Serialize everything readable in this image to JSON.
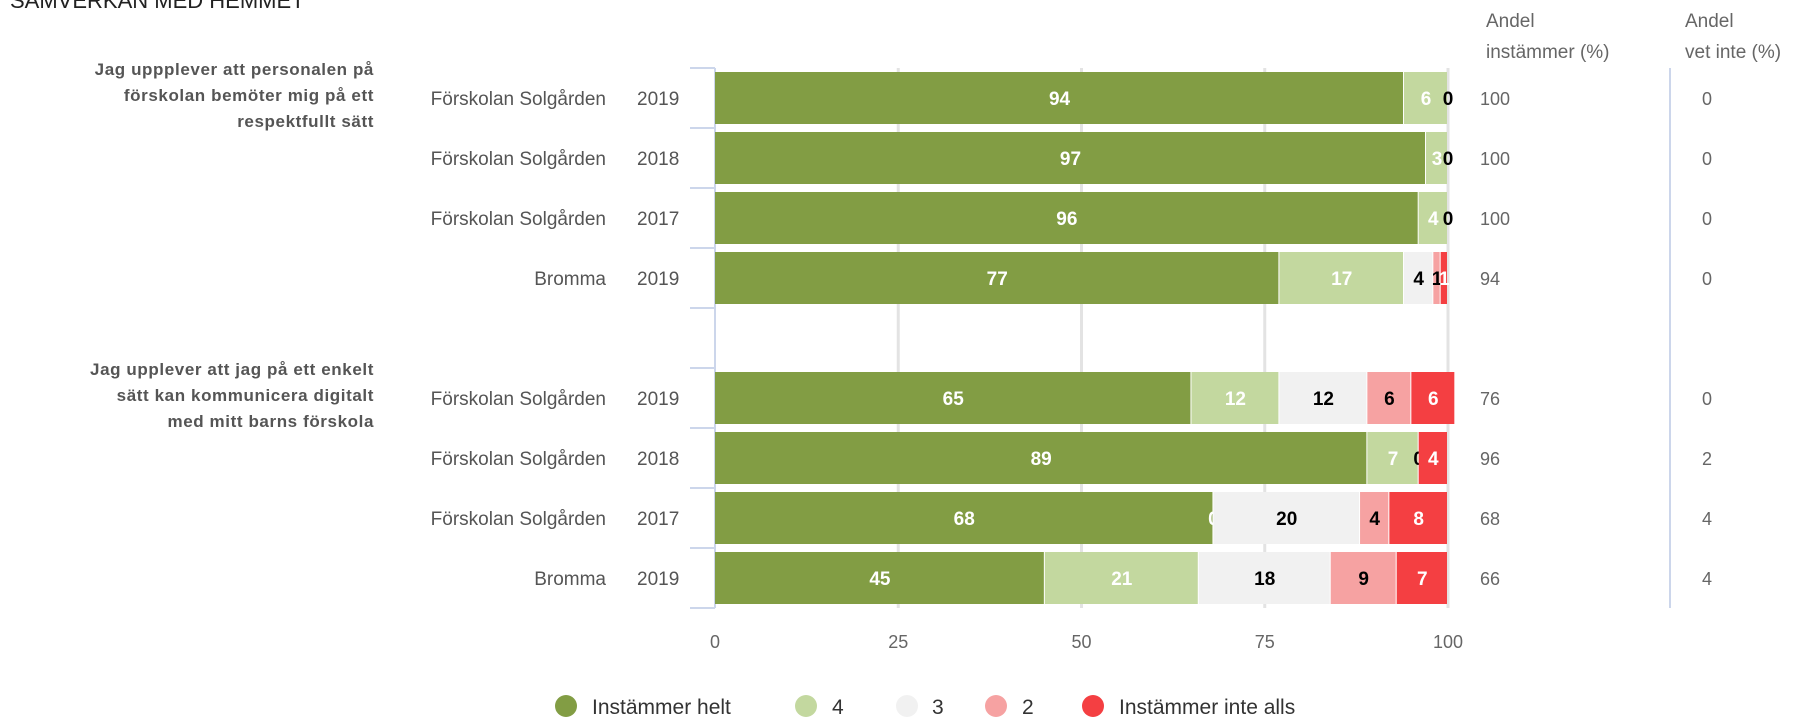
{
  "page_title": "SAMVERKAN MED HEMMET",
  "colors": {
    "full": "#829d44",
    "four": "#c3d89f",
    "three": "#f1f1f1",
    "two": "#f6a2a2",
    "none": "#f43f42"
  },
  "columns": {
    "agree_line1": "Andel",
    "agree_line2": "instämmer (%)",
    "dontknow_line1": "Andel",
    "dontknow_line2": "vet inte (%)"
  },
  "chart_data": {
    "type": "bar",
    "orientation": "horizontal",
    "stacked": true,
    "xlim": [
      0,
      100
    ],
    "xticks": [
      0,
      25,
      50,
      75,
      100
    ],
    "grid": true,
    "legend_placement": "bottom",
    "series": [
      {
        "name": "Instämmer helt",
        "color": "#829d44"
      },
      {
        "name": "4",
        "color": "#c3d89f"
      },
      {
        "name": "3",
        "color": "#f1f1f1"
      },
      {
        "name": "2",
        "color": "#f6a2a2"
      },
      {
        "name": "Instämmer inte alls",
        "color": "#f43f42"
      }
    ],
    "groups": [
      {
        "question_lines": [
          "Jag uppplever att personalen på",
          "förskolan bemöter mig på ett",
          "respektfullt sätt"
        ],
        "rows": [
          {
            "category": "Förskolan Solgården",
            "year": "2019",
            "values": [
              94,
              6,
              0,
              0,
              0
            ],
            "labels": [
              "94",
              "6",
              "0",
              "",
              ""
            ],
            "agree": "100",
            "dont_know": "0"
          },
          {
            "category": "Förskolan Solgården",
            "year": "2018",
            "values": [
              97,
              3,
              0,
              0,
              0
            ],
            "labels": [
              "97",
              "3",
              "0",
              "",
              ""
            ],
            "agree": "100",
            "dont_know": "0"
          },
          {
            "category": "Förskolan Solgården",
            "year": "2017",
            "values": [
              96,
              4,
              0,
              0,
              0
            ],
            "labels": [
              "96",
              "4",
              "0",
              "",
              ""
            ],
            "agree": "100",
            "dont_know": "0"
          },
          {
            "category": "Bromma",
            "year": "2019",
            "values": [
              77,
              17,
              4,
              1,
              1
            ],
            "labels": [
              "77",
              "17",
              "4",
              "1",
              "1"
            ],
            "agree": "94",
            "dont_know": "0"
          }
        ]
      },
      {
        "question_lines": [
          "Jag upplever att jag på ett enkelt",
          "sätt kan kommunicera digitalt",
          "med mitt barns förskola"
        ],
        "rows": [
          {
            "category": "Förskolan Solgården",
            "year": "2019",
            "values": [
              65,
              12,
              12,
              6,
              6
            ],
            "labels": [
              "65",
              "12",
              "12",
              "6",
              "6"
            ],
            "agree": "76",
            "dont_know": "0"
          },
          {
            "category": "Förskolan Solgården",
            "year": "2018",
            "values": [
              89,
              7,
              0,
              0,
              4
            ],
            "labels": [
              "89",
              "7",
              "0",
              "",
              "4"
            ],
            "agree": "96",
            "dont_know": "2"
          },
          {
            "category": "Förskolan Solgården",
            "year": "2017",
            "values": [
              68,
              0,
              20,
              4,
              8
            ],
            "labels": [
              "68",
              "0",
              "20",
              "4",
              "8"
            ],
            "agree": "68",
            "dont_know": "4"
          },
          {
            "category": "Bromma",
            "year": "2019",
            "values": [
              45,
              21,
              18,
              9,
              7
            ],
            "labels": [
              "45",
              "21",
              "18",
              "9",
              "7"
            ],
            "agree": "66",
            "dont_know": "4"
          }
        ]
      }
    ]
  }
}
